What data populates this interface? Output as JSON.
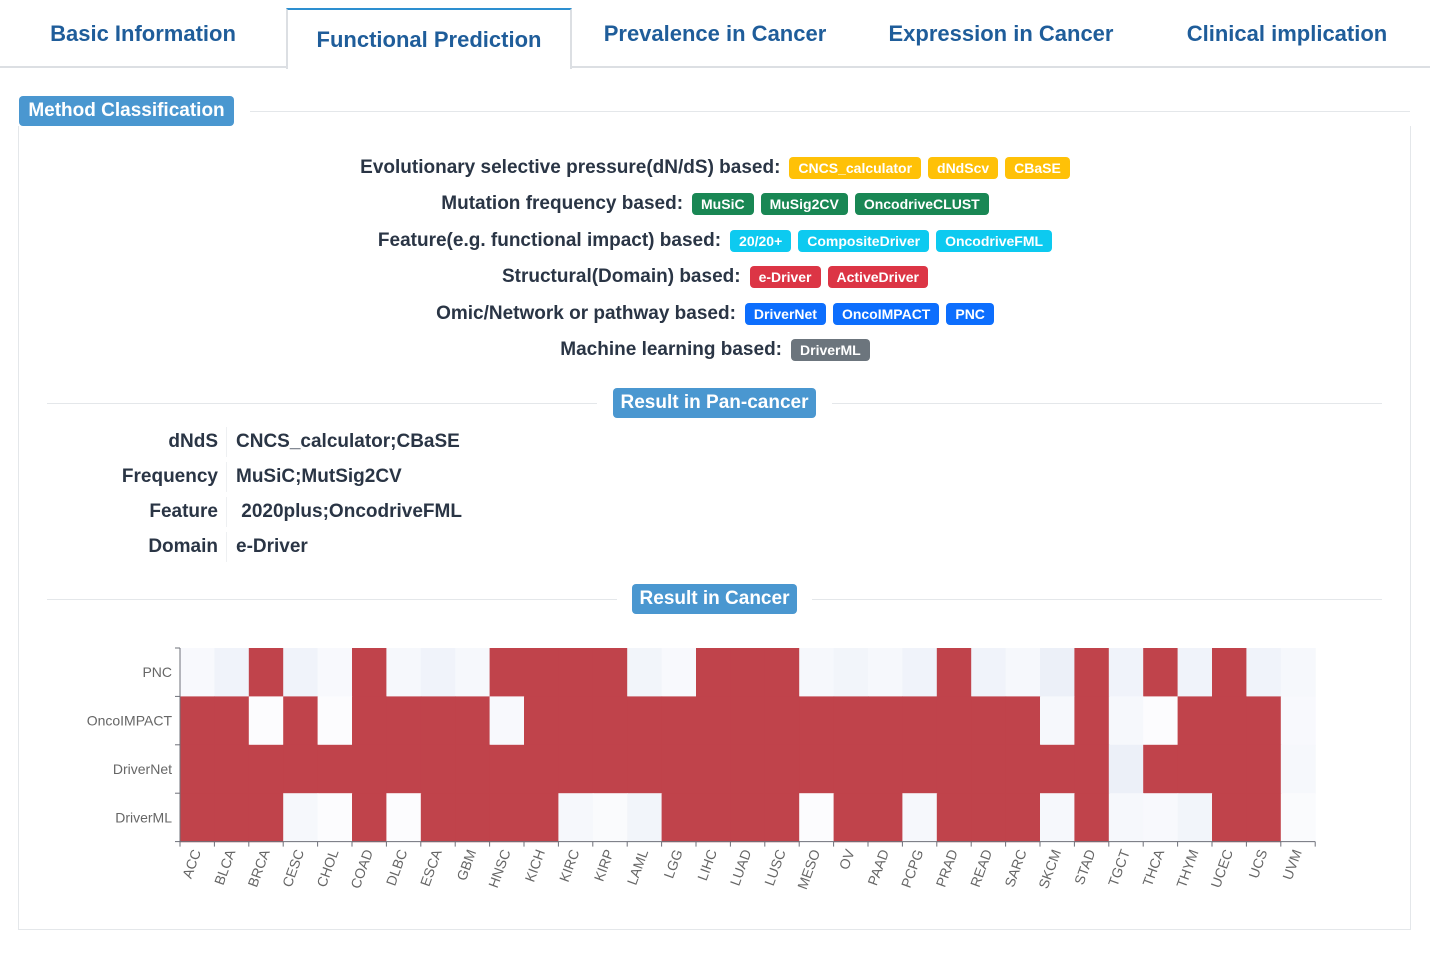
{
  "tabs": [
    {
      "label": "Basic Information",
      "active": false
    },
    {
      "label": "Functional Prediction",
      "active": true
    },
    {
      "label": "Prevalence in Cancer",
      "active": false
    },
    {
      "label": "Expression in Cancer",
      "active": false
    },
    {
      "label": "Clinical implication",
      "active": false
    }
  ],
  "method_section": {
    "title": "Method Classification",
    "rows": [
      {
        "label": "Evolutionary selective pressure(dN/dS) based:",
        "color": "#ffc107",
        "badges": [
          "CNCS_calculator",
          "dNdScv",
          "CBaSE"
        ]
      },
      {
        "label": "Mutation frequency based:",
        "color": "#198754",
        "badges": [
          "MuSiC",
          "MuSig2CV",
          "OncodriveCLUST"
        ]
      },
      {
        "label": "Feature(e.g. functional impact) based:",
        "color": "#0dcaf0",
        "badges": [
          "20/20+",
          "CompositeDriver",
          "OncodriveFML"
        ]
      },
      {
        "label": "Structural(Domain) based:",
        "color": "#dc3545",
        "badges": [
          "e-Driver",
          "ActiveDriver"
        ]
      },
      {
        "label": "Omic/Network or pathway based:",
        "color": "#0d6efd",
        "badges": [
          "DriverNet",
          "OncoIMPACT",
          "PNC"
        ]
      },
      {
        "label": "Machine learning based:",
        "color": "#6c757d",
        "badges": [
          "DriverML"
        ]
      }
    ]
  },
  "pan_cancer": {
    "title": "Result in Pan-cancer",
    "rows": [
      {
        "key": "dNdS",
        "value": "CNCS_calculator;CBaSE"
      },
      {
        "key": "Frequency",
        "value": "MuSiC;MutSig2CV"
      },
      {
        "key": "Feature",
        "value": " 2020plus;OncodriveFML"
      },
      {
        "key": "Domain",
        "value": "e-Driver"
      }
    ]
  },
  "cancer_section": {
    "title": "Result in Cancer"
  },
  "chart_data": {
    "type": "heatmap",
    "title": "",
    "x_categories": [
      "ACC",
      "BLCA",
      "BRCA",
      "CESC",
      "CHOL",
      "COAD",
      "DLBC",
      "ESCA",
      "GBM",
      "HNSC",
      "KICH",
      "KIRC",
      "KIRP",
      "LAML",
      "LGG",
      "LIHC",
      "LUAD",
      "LUSC",
      "MESO",
      "OV",
      "PAAD",
      "PCPG",
      "PRAD",
      "READ",
      "SARC",
      "SKCM",
      "STAD",
      "TGCT",
      "THCA",
      "THYM",
      "UCEC",
      "UCS",
      "UVM"
    ],
    "y_categories": [
      "PNC",
      "OncoIMPACT",
      "DriverNet",
      "DriverML"
    ],
    "hit_color": "#c0434b",
    "values": [
      [
        0.02,
        0.06,
        1,
        0.06,
        0.02,
        1,
        0.03,
        0.06,
        0.03,
        1,
        1,
        1,
        1,
        0.05,
        0.02,
        1,
        1,
        1,
        0.03,
        0.05,
        0.03,
        0.06,
        1,
        0.06,
        0.03,
        0.08,
        1,
        0.06,
        1,
        0.06,
        1,
        0.06,
        0.03
      ],
      [
        1,
        1,
        0,
        1,
        0,
        1,
        1,
        1,
        1,
        0.02,
        1,
        1,
        1,
        1,
        1,
        1,
        1,
        1,
        1,
        1,
        1,
        1,
        1,
        1,
        1,
        0.03,
        1,
        0.03,
        0,
        1,
        1,
        1,
        0.02
      ],
      [
        1,
        1,
        1,
        1,
        1,
        1,
        1,
        1,
        1,
        1,
        1,
        1,
        1,
        1,
        1,
        1,
        1,
        1,
        1,
        1,
        1,
        1,
        1,
        1,
        1,
        1,
        1,
        0.08,
        1,
        1,
        1,
        1,
        0.03
      ],
      [
        1,
        1,
        1,
        0.03,
        0,
        1,
        0,
        1,
        1,
        1,
        1,
        0.03,
        0.01,
        0.05,
        1,
        1,
        1,
        1,
        0,
        1,
        1,
        0.03,
        1,
        1,
        1,
        0.03,
        1,
        0.03,
        0.02,
        0.05,
        1,
        1,
        0.01
      ]
    ],
    "legend": "none"
  }
}
